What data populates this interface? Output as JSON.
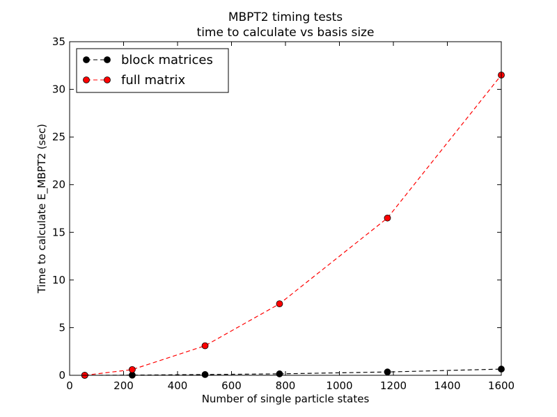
{
  "chart_data": {
    "type": "line",
    "title": "MBPT2 timing tests",
    "subtitle": "time to calculate vs basis size",
    "xlabel": "Number of single particle states",
    "ylabel": "Time to calculate E_MBPT2 (sec)",
    "xlim": [
      0,
      1600
    ],
    "ylim": [
      0,
      35
    ],
    "xticks": [
      0,
      200,
      400,
      600,
      800,
      1000,
      1200,
      1400,
      1600
    ],
    "yticks": [
      0,
      5,
      10,
      15,
      20,
      25,
      30,
      35
    ],
    "grid": false,
    "legend_position": "top-left",
    "series": [
      {
        "name": "block matrices",
        "color": "#000000",
        "marker_color": "#000000",
        "line_style": "dashed",
        "x": [
          56,
          232,
          502,
          778,
          1178,
          1600
        ],
        "y": [
          0.0,
          0.02,
          0.08,
          0.15,
          0.35,
          0.65
        ]
      },
      {
        "name": "full matrix",
        "color": "#ff0000",
        "marker_color": "#ff0000",
        "line_style": "dashed",
        "x": [
          56,
          232,
          502,
          778,
          1178,
          1600
        ],
        "y": [
          0.0,
          0.6,
          3.1,
          7.5,
          16.5,
          31.5
        ]
      }
    ]
  }
}
